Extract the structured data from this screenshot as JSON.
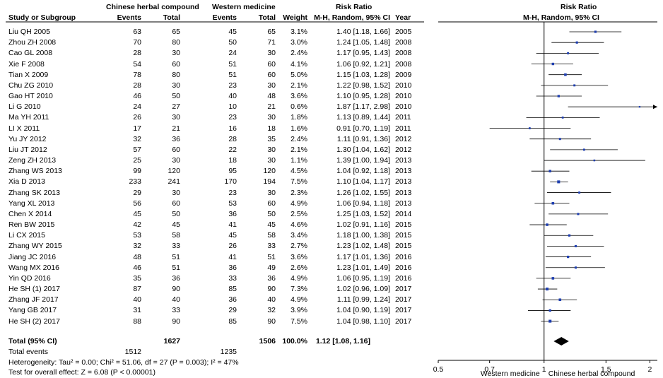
{
  "chart_data": {
    "type": "forest",
    "group_headers": {
      "experimental": "Chinese herbal compound",
      "control": "Western medicine",
      "effect": "Risk Ratio",
      "plot": "Risk Ratio"
    },
    "column_headers": {
      "study": "Study or Subgroup",
      "exp_events": "Events",
      "exp_total": "Total",
      "ctl_events": "Events",
      "ctl_total": "Total",
      "weight": "Weight",
      "effect": "M-H, Random, 95% CI",
      "year": "Year",
      "plot": "M-H, Random, 95% CI"
    },
    "studies": [
      {
        "name": "Liu QH 2005",
        "e_ev": "63",
        "e_tot": "65",
        "c_ev": "45",
        "c_tot": "65",
        "weight": "3.1%",
        "ci": "1.40 [1.18, 1.66]",
        "year": "2005",
        "rr": 1.4,
        "lo": 1.18,
        "hi": 1.66
      },
      {
        "name": "Zhou ZH 2008",
        "e_ev": "70",
        "e_tot": "80",
        "c_ev": "50",
        "c_tot": "71",
        "weight": "3.0%",
        "ci": "1.24 [1.05, 1.48]",
        "year": "2008",
        "rr": 1.24,
        "lo": 1.05,
        "hi": 1.48
      },
      {
        "name": "Cao GL 2008",
        "e_ev": "28",
        "e_tot": "30",
        "c_ev": "24",
        "c_tot": "30",
        "weight": "2.4%",
        "ci": "1.17 [0.95, 1.43]",
        "year": "2008",
        "rr": 1.17,
        "lo": 0.95,
        "hi": 1.43
      },
      {
        "name": "Xie F 2008",
        "e_ev": "54",
        "e_tot": "60",
        "c_ev": "51",
        "c_tot": "60",
        "weight": "4.1%",
        "ci": "1.06 [0.92, 1.21]",
        "year": "2008",
        "rr": 1.06,
        "lo": 0.92,
        "hi": 1.21
      },
      {
        "name": "Tian X 2009",
        "e_ev": "78",
        "e_tot": "80",
        "c_ev": "51",
        "c_tot": "60",
        "weight": "5.0%",
        "ci": "1.15 [1.03, 1.28]",
        "year": "2009",
        "rr": 1.15,
        "lo": 1.03,
        "hi": 1.28
      },
      {
        "name": "Chu ZG 2010",
        "e_ev": "28",
        "e_tot": "30",
        "c_ev": "23",
        "c_tot": "30",
        "weight": "2.1%",
        "ci": "1.22 [0.98, 1.52]",
        "year": "2010",
        "rr": 1.22,
        "lo": 0.98,
        "hi": 1.52
      },
      {
        "name": "Gao HT 2010",
        "e_ev": "46",
        "e_tot": "50",
        "c_ev": "40",
        "c_tot": "48",
        "weight": "3.6%",
        "ci": "1.10 [0.95, 1.28]",
        "year": "2010",
        "rr": 1.1,
        "lo": 0.95,
        "hi": 1.28
      },
      {
        "name": "Li G 2010",
        "e_ev": "24",
        "e_tot": "27",
        "c_ev": "10",
        "c_tot": "21",
        "weight": "0.6%",
        "ci": "1.87 [1.17, 2.98]",
        "year": "2010",
        "rr": 1.87,
        "lo": 1.17,
        "hi": 2.98
      },
      {
        "name": "Ma YH 2011",
        "e_ev": "26",
        "e_tot": "30",
        "c_ev": "23",
        "c_tot": "30",
        "weight": "1.8%",
        "ci": "1.13 [0.89, 1.44]",
        "year": "2011",
        "rr": 1.13,
        "lo": 0.89,
        "hi": 1.44
      },
      {
        "name": "LI X 2011",
        "e_ev": "17",
        "e_tot": "21",
        "c_ev": "16",
        "c_tot": "18",
        "weight": "1.6%",
        "ci": "0.91 [0.70, 1.19]",
        "year": "2011",
        "rr": 0.91,
        "lo": 0.7,
        "hi": 1.19
      },
      {
        "name": "Yu JY 2012",
        "e_ev": "32",
        "e_tot": "36",
        "c_ev": "28",
        "c_tot": "35",
        "weight": "2.4%",
        "ci": "1.11 [0.91, 1.36]",
        "year": "2012",
        "rr": 1.11,
        "lo": 0.91,
        "hi": 1.36
      },
      {
        "name": "Liu JT 2012",
        "e_ev": "57",
        "e_tot": "60",
        "c_ev": "22",
        "c_tot": "30",
        "weight": "2.1%",
        "ci": "1.30 [1.04, 1.62]",
        "year": "2012",
        "rr": 1.3,
        "lo": 1.04,
        "hi": 1.62
      },
      {
        "name": "Zeng ZH 2013",
        "e_ev": "25",
        "e_tot": "30",
        "c_ev": "18",
        "c_tot": "30",
        "weight": "1.1%",
        "ci": "1.39 [1.00, 1.94]",
        "year": "2013",
        "rr": 1.39,
        "lo": 1.0,
        "hi": 1.94
      },
      {
        "name": "Zhang WS 2013",
        "e_ev": "99",
        "e_tot": "120",
        "c_ev": "95",
        "c_tot": "120",
        "weight": "4.5%",
        "ci": "1.04 [0.92, 1.18]",
        "year": "2013",
        "rr": 1.04,
        "lo": 0.92,
        "hi": 1.18
      },
      {
        "name": "Xia D 2013",
        "e_ev": "233",
        "e_tot": "241",
        "c_ev": "170",
        "c_tot": "194",
        "weight": "7.5%",
        "ci": "1.10 [1.04, 1.17]",
        "year": "2013",
        "rr": 1.1,
        "lo": 1.04,
        "hi": 1.17
      },
      {
        "name": "Zhang SK 2013",
        "e_ev": "29",
        "e_tot": "30",
        "c_ev": "23",
        "c_tot": "30",
        "weight": "2.3%",
        "ci": "1.26 [1.02, 1.55]",
        "year": "2013",
        "rr": 1.26,
        "lo": 1.02,
        "hi": 1.55
      },
      {
        "name": "Yang XL 2013",
        "e_ev": "56",
        "e_tot": "60",
        "c_ev": "53",
        "c_tot": "60",
        "weight": "4.9%",
        "ci": "1.06 [0.94, 1.18]",
        "year": "2013",
        "rr": 1.06,
        "lo": 0.94,
        "hi": 1.18
      },
      {
        "name": "Chen X 2014",
        "e_ev": "45",
        "e_tot": "50",
        "c_ev": "36",
        "c_tot": "50",
        "weight": "2.5%",
        "ci": "1.25 [1.03, 1.52]",
        "year": "2014",
        "rr": 1.25,
        "lo": 1.03,
        "hi": 1.52
      },
      {
        "name": "Ren BW 2015",
        "e_ev": "42",
        "e_tot": "45",
        "c_ev": "41",
        "c_tot": "45",
        "weight": "4.6%",
        "ci": "1.02 [0.91, 1.16]",
        "year": "2015",
        "rr": 1.02,
        "lo": 0.91,
        "hi": 1.16
      },
      {
        "name": "Li CX 2015",
        "e_ev": "53",
        "e_tot": "58",
        "c_ev": "45",
        "c_tot": "58",
        "weight": "3.4%",
        "ci": "1.18 [1.00, 1.38]",
        "year": "2015",
        "rr": 1.18,
        "lo": 1.0,
        "hi": 1.38
      },
      {
        "name": "Zhang WY 2015",
        "e_ev": "32",
        "e_tot": "33",
        "c_ev": "26",
        "c_tot": "33",
        "weight": "2.7%",
        "ci": "1.23 [1.02, 1.48]",
        "year": "2015",
        "rr": 1.23,
        "lo": 1.02,
        "hi": 1.48
      },
      {
        "name": "Jiang JC  2016",
        "e_ev": "48",
        "e_tot": "51",
        "c_ev": "41",
        "c_tot": "51",
        "weight": "3.6%",
        "ci": "1.17 [1.01, 1.36]",
        "year": "2016",
        "rr": 1.17,
        "lo": 1.01,
        "hi": 1.36
      },
      {
        "name": "Wang MX 2016",
        "e_ev": "46",
        "e_tot": "51",
        "c_ev": "36",
        "c_tot": "49",
        "weight": "2.6%",
        "ci": "1.23 [1.01, 1.49]",
        "year": "2016",
        "rr": 1.23,
        "lo": 1.01,
        "hi": 1.49
      },
      {
        "name": "Yin QD 2016",
        "e_ev": "35",
        "e_tot": "36",
        "c_ev": "33",
        "c_tot": "36",
        "weight": "4.9%",
        "ci": "1.06 [0.95, 1.19]",
        "year": "2016",
        "rr": 1.06,
        "lo": 0.95,
        "hi": 1.19
      },
      {
        "name": "He SH (1) 2017",
        "e_ev": "87",
        "e_tot": "90",
        "c_ev": "85",
        "c_tot": "90",
        "weight": "7.3%",
        "ci": "1.02 [0.96, 1.09]",
        "year": "2017",
        "rr": 1.02,
        "lo": 0.96,
        "hi": 1.09
      },
      {
        "name": "Zhang JF 2017",
        "e_ev": "40",
        "e_tot": "40",
        "c_ev": "36",
        "c_tot": "40",
        "weight": "4.9%",
        "ci": "1.11 [0.99, 1.24]",
        "year": "2017",
        "rr": 1.11,
        "lo": 0.99,
        "hi": 1.24
      },
      {
        "name": "Yang GB 2017",
        "e_ev": "31",
        "e_tot": "33",
        "c_ev": "29",
        "c_tot": "32",
        "weight": "3.9%",
        "ci": "1.04 [0.90, 1.19]",
        "year": "2017",
        "rr": 1.04,
        "lo": 0.9,
        "hi": 1.19
      },
      {
        "name": "He SH (2) 2017",
        "e_ev": "88",
        "e_tot": "90",
        "c_ev": "85",
        "c_tot": "90",
        "weight": "7.5%",
        "ci": "1.04 [0.98, 1.10]",
        "year": "2017",
        "rr": 1.04,
        "lo": 0.98,
        "hi": 1.1
      }
    ],
    "total": {
      "label": "Total (95% CI)",
      "e_tot": "1627",
      "c_tot": "1506",
      "weight": "100.0%",
      "ci": "1.12 [1.08, 1.16]",
      "rr": 1.12,
      "lo": 1.08,
      "hi": 1.16
    },
    "total_events": {
      "label": "Total events",
      "e": "1512",
      "c": "1235"
    },
    "heterogeneity": "Heterogeneity: Tau² = 0.00; Chi² = 51.06, df = 27 (P = 0.003); I² = 47%",
    "overall_effect": "Test for overall effect: Z = 6.08 (P < 0.00001)",
    "axis": {
      "scale": "log",
      "range": [
        0.5,
        2.1
      ],
      "ticks": [
        "0.5",
        "0.7",
        "1",
        "1.5",
        "2"
      ],
      "tick_values": [
        0.5,
        0.7,
        1,
        1.5,
        2
      ],
      "null_line": 1
    },
    "favours": {
      "left": "Western medicine",
      "right": "Chinese herbal compound"
    }
  }
}
